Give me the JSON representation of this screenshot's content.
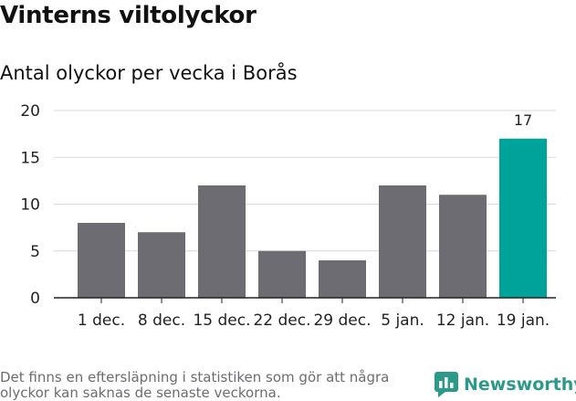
{
  "title": "Vinterns viltolyckor",
  "subtitle": "Antal olyckor per vecka i Borås",
  "footnote": "Det finns en eftersläpning i statistiken som gör att några olyckor kan saknas de senaste veckorna.",
  "brand": {
    "name": "Newsworthy",
    "icon": "newsworthy-chart-icon"
  },
  "colors": {
    "bar": "#6d6c72",
    "highlight": "#00a39a",
    "grid": "#d9d9d9",
    "axis": "#222222",
    "brand": "#2b9a89"
  },
  "chart_data": {
    "type": "bar",
    "categories": [
      "1 dec.",
      "8 dec.",
      "15 dec.",
      "22 dec.",
      "29 dec.",
      "5 jan.",
      "12 jan.",
      "19 jan."
    ],
    "values": [
      8,
      7,
      12,
      5,
      4,
      12,
      11,
      17
    ],
    "highlight_index": 7,
    "data_labels": [
      "",
      "",
      "",
      "",
      "",
      "",
      "",
      "17"
    ],
    "yticks": [
      "0",
      "5",
      "10",
      "15",
      "20"
    ],
    "ylim": [
      0,
      20
    ],
    "xlabel": "",
    "ylabel": "",
    "grid": true,
    "legend": "none"
  }
}
